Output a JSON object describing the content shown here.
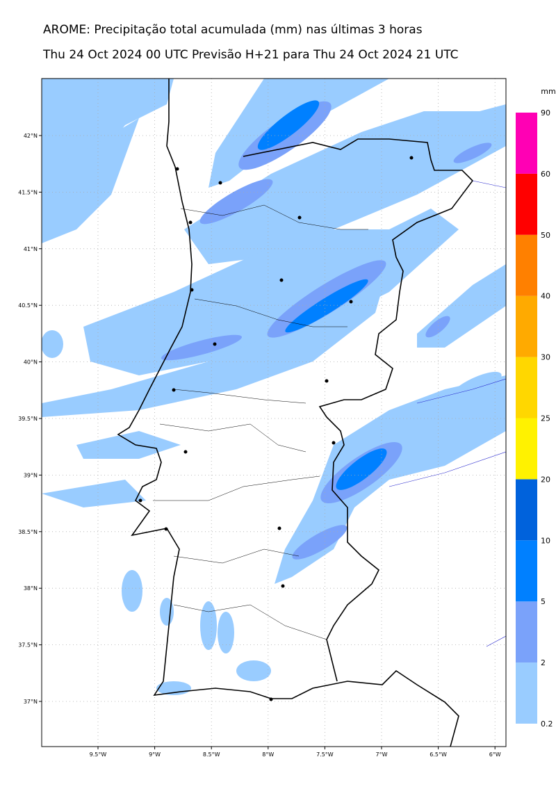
{
  "header": {
    "title": "AROME: Precipitação total acumulada (mm) nas últimas 3 horas",
    "subtitle": "Thu 24 Oct 2024 00 UTC Previsão H+21 para Thu 24 Oct 2024 21 UTC"
  },
  "map": {
    "lon_ticks": [
      {
        "value": -9.5,
        "label": "9.5°W"
      },
      {
        "value": -9,
        "label": "9°W"
      },
      {
        "value": -8.5,
        "label": "8.5°W"
      },
      {
        "value": -8,
        "label": "8°W"
      },
      {
        "value": -7.5,
        "label": "7.5°W"
      },
      {
        "value": -7,
        "label": "7°W"
      },
      {
        "value": -6.5,
        "label": "6.5°W"
      },
      {
        "value": -6,
        "label": "6°W"
      }
    ],
    "lat_ticks": [
      {
        "value": 42,
        "label": "42°N"
      },
      {
        "value": 41.5,
        "label": "41.5°N"
      },
      {
        "value": 41,
        "label": "41°N"
      },
      {
        "value": 40.5,
        "label": "40.5°N"
      },
      {
        "value": 40,
        "label": "40°N"
      },
      {
        "value": 39.5,
        "label": "39.5°N"
      },
      {
        "value": 39,
        "label": "39°N"
      },
      {
        "value": 38.5,
        "label": "38.5°N"
      },
      {
        "value": 38,
        "label": "38°N"
      },
      {
        "value": 37.5,
        "label": "37.5°N"
      },
      {
        "value": 37,
        "label": "37°N"
      }
    ]
  },
  "colorbar": {
    "unit": "mm",
    "levels": [
      0.2,
      2,
      5,
      10,
      20,
      25,
      30,
      40,
      50,
      60,
      90
    ],
    "colors": [
      "#99ccff",
      "#7aa2fa",
      "#0080ff",
      "#0062dc",
      "#fff200",
      "#ffd700",
      "#ffaa00",
      "#ff8000",
      "#ff0000",
      "#ff00b4"
    ]
  }
}
